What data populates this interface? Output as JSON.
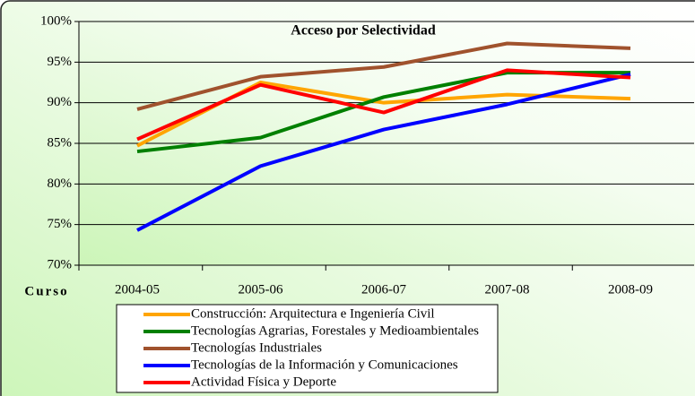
{
  "chart_data": {
    "type": "line",
    "title": "Acceso por Selectividad",
    "x_label": "Curso",
    "categories": [
      "2004-05",
      "2005-06",
      "2006-07",
      "2007-08",
      "2008-09"
    ],
    "series": [
      {
        "name": "Construcción: Arquitectura e Ingeniería Civil",
        "color": "#ffa500",
        "values": [
          84.7,
          92.5,
          90.0,
          91.0,
          90.5
        ]
      },
      {
        "name": "Tecnologías Agrarias, Forestales y Medioambientales",
        "color": "#008000",
        "values": [
          84.0,
          85.7,
          90.7,
          93.7,
          93.7
        ]
      },
      {
        "name": "Tecnologías Industriales",
        "color": "#a0522d",
        "values": [
          89.2,
          93.2,
          94.4,
          97.3,
          96.7
        ]
      },
      {
        "name": "Tecnologías de la Información y Comunicaciones",
        "color": "#0000ff",
        "values": [
          74.3,
          82.2,
          86.7,
          89.8,
          93.5
        ]
      },
      {
        "name": "Actividad Física y Deporte",
        "color": "#ff0000",
        "values": [
          85.5,
          92.2,
          88.8,
          94.0,
          93.1
        ]
      }
    ],
    "ylim": [
      70,
      100
    ],
    "yticks": [
      {
        "value": 70,
        "label": "70%"
      },
      {
        "value": 75,
        "label": "75%"
      },
      {
        "value": 80,
        "label": "80%"
      },
      {
        "value": 85,
        "label": "85%"
      },
      {
        "value": 90,
        "label": "90%"
      },
      {
        "value": 95,
        "label": "95%"
      },
      {
        "value": 100,
        "label": "100%"
      }
    ],
    "grid": true
  }
}
